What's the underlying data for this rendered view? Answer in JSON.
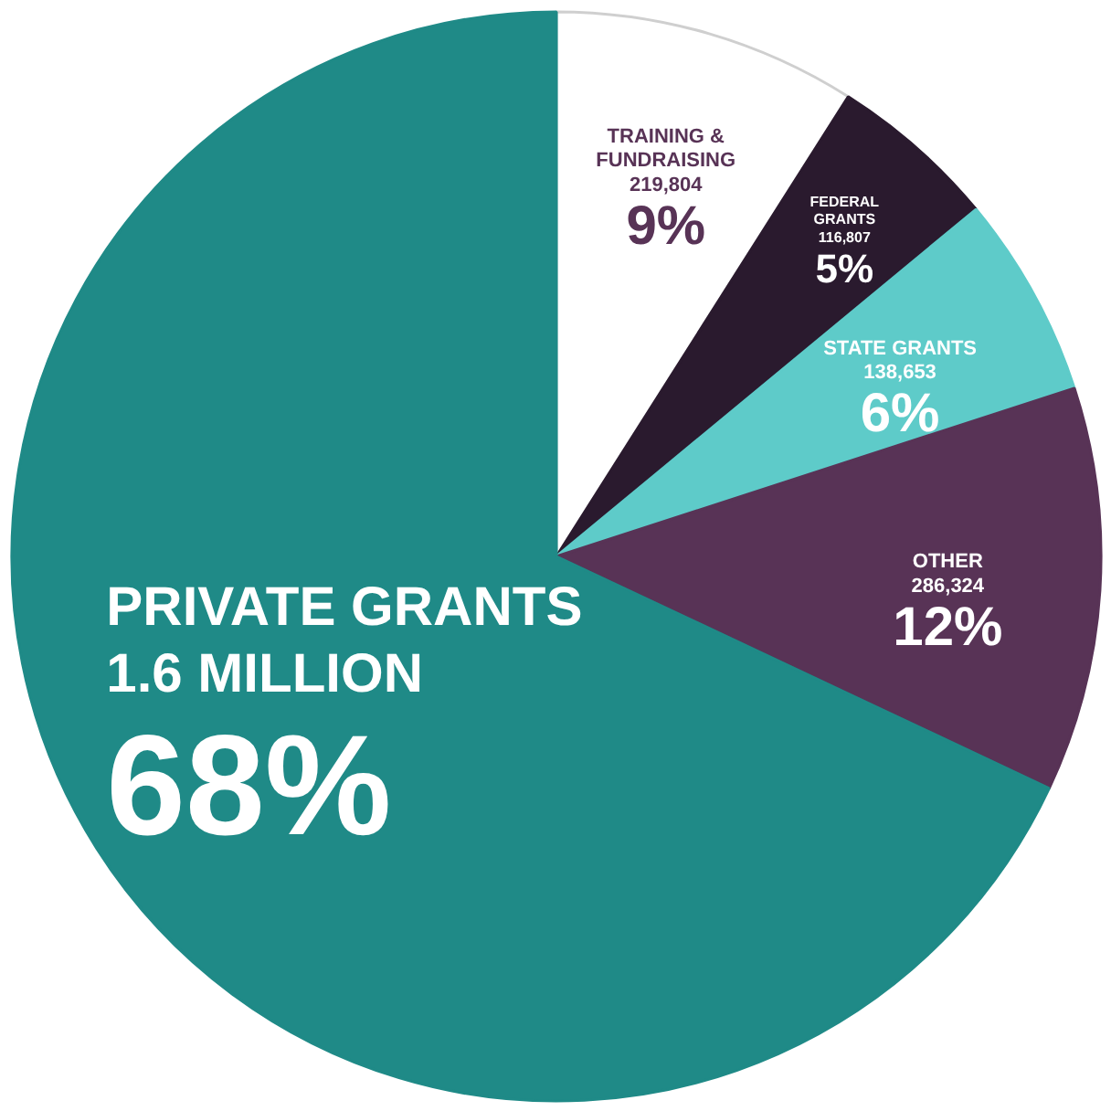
{
  "chart_data": {
    "type": "pie",
    "categories": [
      "TRAINING & FUNDRAISING",
      "FEDERAL GRANTS",
      "STATE GRANTS",
      "OTHER",
      "PRIVATE GRANTS"
    ],
    "values": [
      9,
      5,
      6,
      12,
      68
    ],
    "value_labels": [
      "219,804\n9%",
      "116,807\n5%",
      "138,653\n6%",
      "286,324\n12%",
      "1.6 MILLION\n68%"
    ],
    "colors": [
      "#ffffff",
      "#2a1a2e",
      "#5ecbc9",
      "#583356",
      "#1f8a87"
    ]
  }
}
